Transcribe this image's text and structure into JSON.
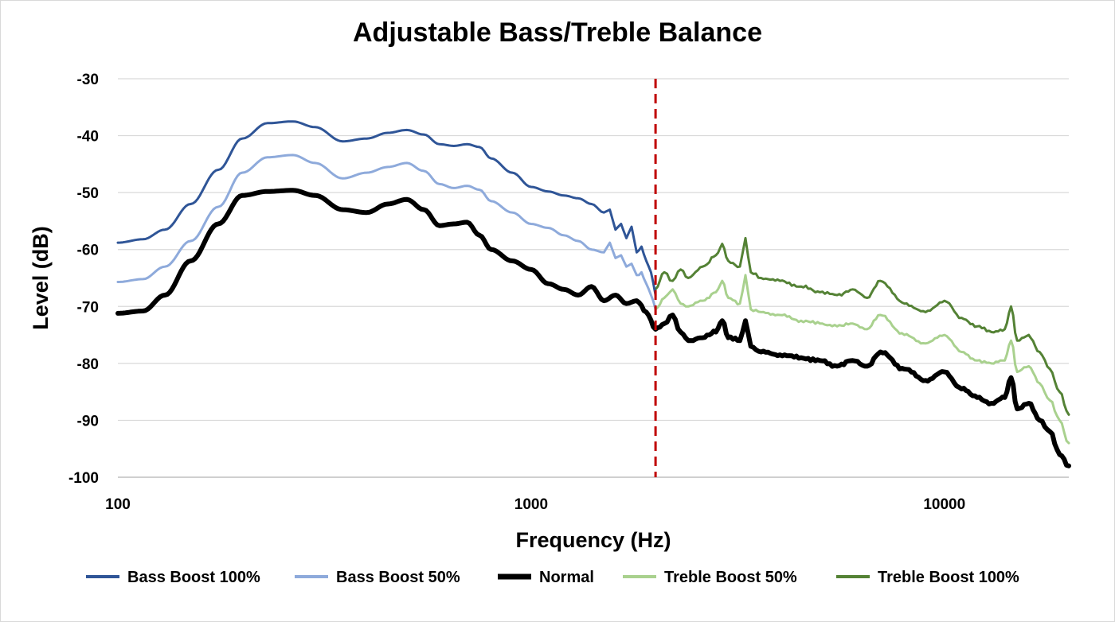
{
  "chart_data": {
    "type": "line",
    "title": "Adjustable Bass/Treble Balance",
    "xlabel": "Frequency (Hz)",
    "ylabel": "Level (dB)",
    "x_scale": "log",
    "xlim": [
      100,
      20000
    ],
    "ylim": [
      -100,
      -30
    ],
    "x_ticks": [
      100,
      1000,
      10000
    ],
    "x_tick_labels": [
      "100",
      "1000",
      "10000"
    ],
    "y_ticks": [
      -30,
      -40,
      -50,
      -60,
      -70,
      -80,
      -90,
      -100
    ],
    "y_tick_labels": [
      "-30",
      "-40",
      "-50",
      "-60",
      "-70",
      "-80",
      "-90",
      "-100"
    ],
    "grid": "horizontal",
    "legend_position": "bottom",
    "crossover_line": {
      "x": 2000,
      "color": "#c00000",
      "style": "dashed"
    },
    "series": [
      {
        "name": "Bass Boost 100%",
        "color": "#2f5597",
        "width": 3,
        "x": [
          100,
          115,
          130,
          150,
          175,
          200,
          230,
          265,
          300,
          350,
          400,
          450,
          500,
          550,
          600,
          650,
          700,
          750,
          800,
          900,
          1000,
          1100,
          1200,
          1300,
          1400,
          1500,
          1550,
          1600,
          1650,
          1700,
          1750,
          1800,
          1850,
          1900,
          1950,
          2000
        ],
        "values": [
          -58.8,
          -58.2,
          -56.5,
          -52.0,
          -46.0,
          -40.5,
          -37.8,
          -37.5,
          -38.5,
          -41.0,
          -40.5,
          -39.5,
          -39.0,
          -39.8,
          -41.5,
          -41.8,
          -41.5,
          -42.0,
          -44.0,
          -46.5,
          -49.0,
          -49.8,
          -50.5,
          -51.0,
          -52.0,
          -53.5,
          -53.0,
          -56.5,
          -55.5,
          -58.0,
          -56.0,
          -60.5,
          -59.5,
          -62.0,
          -64.0,
          -68.0
        ]
      },
      {
        "name": "Bass Boost 50%",
        "color": "#8eaadb",
        "width": 3,
        "x": [
          100,
          115,
          130,
          150,
          175,
          200,
          230,
          265,
          300,
          350,
          400,
          450,
          500,
          550,
          600,
          650,
          700,
          750,
          800,
          900,
          1000,
          1100,
          1200,
          1300,
          1400,
          1500,
          1550,
          1600,
          1650,
          1700,
          1750,
          1800,
          1850,
          1900,
          1950,
          2000
        ],
        "values": [
          -65.7,
          -65.2,
          -63.0,
          -58.5,
          -52.5,
          -46.5,
          -43.8,
          -43.4,
          -44.8,
          -47.5,
          -46.5,
          -45.5,
          -44.8,
          -46.2,
          -48.5,
          -49.2,
          -48.8,
          -49.5,
          -51.5,
          -53.5,
          -55.5,
          -56.2,
          -57.5,
          -58.5,
          -60.0,
          -60.5,
          -58.8,
          -61.5,
          -61.0,
          -63.0,
          -62.5,
          -64.5,
          -64.0,
          -66.0,
          -68.0,
          -70.5
        ]
      },
      {
        "name": "Normal",
        "color": "#000000",
        "width": 6,
        "x": [
          100,
          115,
          130,
          150,
          175,
          200,
          230,
          265,
          300,
          350,
          400,
          450,
          500,
          550,
          600,
          650,
          700,
          750,
          800,
          900,
          1000,
          1100,
          1200,
          1300,
          1400,
          1500,
          1600,
          1700,
          1800,
          1900,
          2000,
          2100,
          2200,
          2300,
          2400,
          2600,
          2800,
          2900,
          3000,
          3200,
          3300,
          3400,
          3600,
          4000,
          4500,
          5000,
          5500,
          6000,
          6500,
          7000,
          8000,
          9000,
          10000,
          11000,
          12000,
          13000,
          14000,
          14500,
          15000,
          16000,
          17000,
          18000,
          19000,
          20000
        ],
        "values": [
          -71.2,
          -70.8,
          -68.0,
          -62.0,
          -55.5,
          -50.5,
          -49.8,
          -49.6,
          -50.5,
          -53.0,
          -53.5,
          -52.0,
          -51.2,
          -53.0,
          -55.8,
          -55.5,
          -55.2,
          -57.5,
          -60.0,
          -62.0,
          -63.5,
          -66.0,
          -67.0,
          -68.0,
          -66.5,
          -69.0,
          -68.0,
          -69.5,
          -69.0,
          -71.0,
          -74.0,
          -73.0,
          -71.5,
          -74.5,
          -76.0,
          -75.5,
          -74.5,
          -72.5,
          -75.5,
          -76.0,
          -72.5,
          -77.0,
          -78.0,
          -78.5,
          -79.0,
          -79.5,
          -80.5,
          -79.5,
          -80.5,
          -78.0,
          -81.0,
          -83.0,
          -81.5,
          -84.5,
          -86.0,
          -87.0,
          -86.0,
          -82.5,
          -88.0,
          -87.0,
          -90.0,
          -92.0,
          -96.0,
          -98.0
        ]
      },
      {
        "name": "Treble Boost 50%",
        "color": "#a9d18e",
        "width": 3,
        "x": [
          2000,
          2100,
          2200,
          2300,
          2400,
          2600,
          2800,
          2900,
          3000,
          3200,
          3300,
          3400,
          3600,
          4000,
          4500,
          5000,
          5500,
          6000,
          6500,
          7000,
          8000,
          9000,
          10000,
          11000,
          12000,
          13000,
          14000,
          14500,
          15000,
          16000,
          17000,
          18000,
          19000,
          20000
        ],
        "values": [
          -70.5,
          -68.5,
          -67.0,
          -69.5,
          -70.0,
          -69.0,
          -67.5,
          -65.5,
          -68.5,
          -69.5,
          -64.5,
          -70.5,
          -71.0,
          -71.5,
          -72.5,
          -73.0,
          -73.5,
          -73.0,
          -74.0,
          -71.5,
          -75.0,
          -76.5,
          -75.0,
          -78.0,
          -79.5,
          -80.0,
          -79.5,
          -76.0,
          -81.5,
          -80.5,
          -83.5,
          -86.5,
          -90.0,
          -94.0
        ]
      },
      {
        "name": "Treble Boost 100%",
        "color": "#548235",
        "width": 3,
        "x": [
          2000,
          2100,
          2200,
          2300,
          2400,
          2600,
          2800,
          2900,
          3000,
          3200,
          3300,
          3400,
          3600,
          4000,
          4500,
          5000,
          5500,
          6000,
          6500,
          7000,
          8000,
          9000,
          10000,
          11000,
          12000,
          13000,
          14000,
          14500,
          15000,
          16000,
          17000,
          18000,
          19000,
          20000
        ],
        "values": [
          -67.0,
          -64.0,
          -65.5,
          -63.5,
          -65.0,
          -63.0,
          -61.0,
          -59.0,
          -62.0,
          -63.0,
          -58.0,
          -64.0,
          -65.0,
          -65.5,
          -66.5,
          -67.5,
          -68.0,
          -67.0,
          -68.5,
          -65.5,
          -69.5,
          -71.0,
          -69.0,
          -72.0,
          -73.5,
          -74.5,
          -74.0,
          -70.0,
          -76.0,
          -75.0,
          -78.0,
          -81.0,
          -85.0,
          -89.0
        ]
      }
    ]
  }
}
